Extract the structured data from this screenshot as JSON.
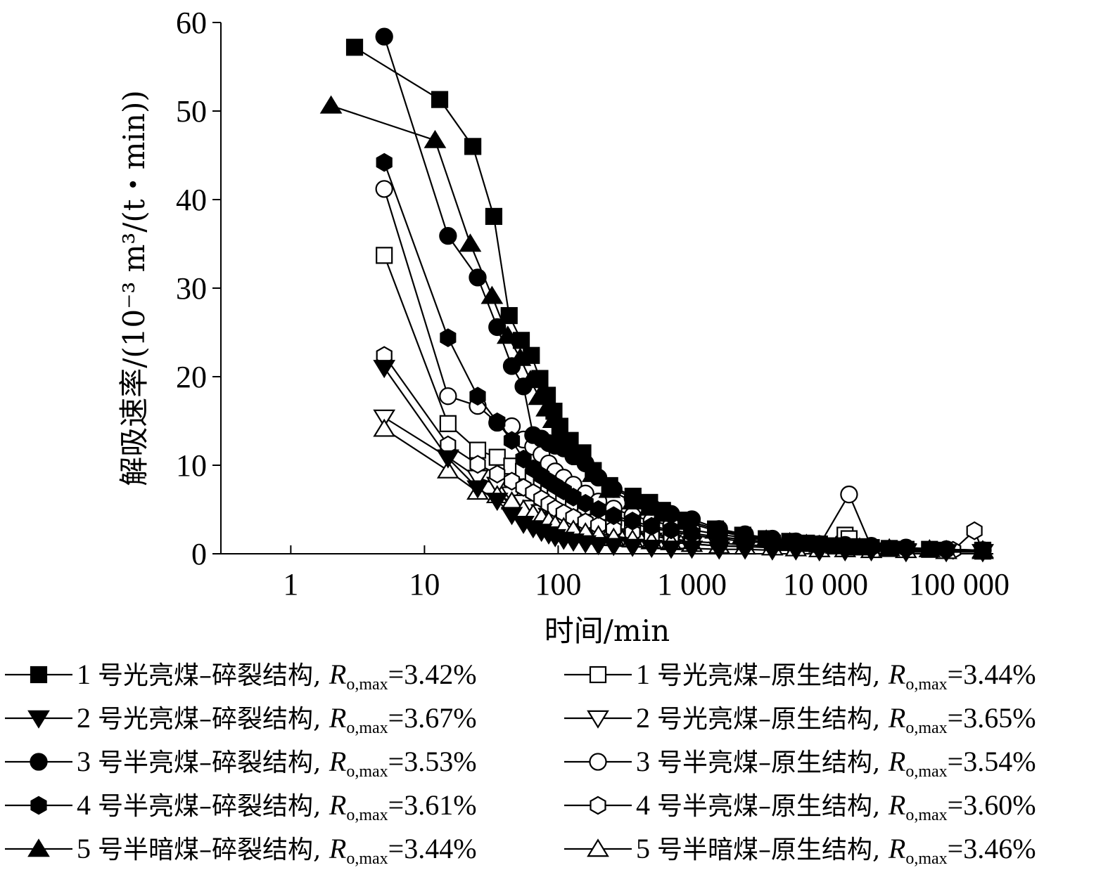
{
  "chart_data": {
    "type": "scatter",
    "xscale": "log",
    "xlim": [
      0.3,
      180000
    ],
    "ylim": [
      0,
      60
    ],
    "xlabel": "时间/min",
    "ylabel": "解吸速率/(10⁻³ m³/(t・min))",
    "x_ticks": [
      1,
      10,
      100,
      1000,
      10000,
      100000
    ],
    "x_tick_labels": [
      "1",
      "10",
      "100",
      "1 000",
      "10 000",
      "100 000"
    ],
    "y_ticks": [
      0,
      10,
      20,
      30,
      40,
      50,
      60
    ],
    "y_tick_labels": [
      "0",
      "10",
      "20",
      "30",
      "40",
      "50",
      "60"
    ],
    "grid": false,
    "legend_position": "bottom",
    "series": [
      {
        "name": "1 号光亮煤–碎裂结构, Ro,max=3.42%",
        "index": "1",
        "coal": "号光亮煤–碎裂结构",
        "ro": "3.42%",
        "marker": "square",
        "filled": true,
        "x": [
          3,
          13,
          23,
          33,
          43,
          53,
          63,
          73,
          83,
          93,
          103,
          123,
          153,
          183,
          243,
          363,
          483,
          603,
          903,
          1503,
          2403,
          3603,
          5403,
          7203,
          9003,
          12003,
          18003,
          30003,
          60003,
          150003
        ],
        "y": [
          57.2,
          51.3,
          46.0,
          38.1,
          26.9,
          24.1,
          22.4,
          19.8,
          17.9,
          16.1,
          14.4,
          12.8,
          11.4,
          9.4,
          7.7,
          6.5,
          5.8,
          4.9,
          3.8,
          2.8,
          2.1,
          1.7,
          1.4,
          1.2,
          1.1,
          0.9,
          0.8,
          0.6,
          0.5,
          0.4
        ]
      },
      {
        "name": "2 号光亮煤–碎裂结构, Ro,max=3.67%",
        "index": "2",
        "coal": "号光亮煤–碎裂结构",
        "ro": "3.67%",
        "marker": "triangle-down",
        "filled": true,
        "x": [
          5,
          15,
          25,
          35,
          45,
          55,
          65,
          75,
          85,
          95,
          110,
          130,
          160,
          200,
          260,
          360,
          500,
          700,
          1000,
          1600,
          2500,
          4000,
          6000,
          9000,
          14000,
          22000,
          40000,
          80000,
          150000
        ],
        "y": [
          21.0,
          10.8,
          7.4,
          6.0,
          4.4,
          3.4,
          2.9,
          2.5,
          2.2,
          1.9,
          1.6,
          1.4,
          1.2,
          1.0,
          0.9,
          0.8,
          0.7,
          0.6,
          0.6,
          0.5,
          0.5,
          0.4,
          0.4,
          0.3,
          0.3,
          0.3,
          0.2,
          0.2,
          0.2
        ]
      },
      {
        "name": "3 号半亮煤–碎裂结构, Ro,max=3.53%",
        "index": "3",
        "coal": "号半亮煤–碎裂结构",
        "ro": "3.53%",
        "marker": "circle",
        "filled": true,
        "x": [
          5,
          15,
          25,
          35,
          45,
          55,
          65,
          75,
          85,
          95,
          110,
          130,
          160,
          200,
          260,
          360,
          500,
          700,
          1000,
          1600,
          2500,
          4000,
          6000,
          9000,
          14000,
          22000,
          40000,
          80000,
          150000
        ],
        "y": [
          58.4,
          35.9,
          31.2,
          25.6,
          21.2,
          18.9,
          13.4,
          13.0,
          12.5,
          12.2,
          11.9,
          11.0,
          10.2,
          8.6,
          7.3,
          6.3,
          5.3,
          4.5,
          3.9,
          2.8,
          2.2,
          1.7,
          1.4,
          1.1,
          1.0,
          0.9,
          0.7,
          0.5,
          0.4
        ]
      },
      {
        "name": "4 号半亮煤–碎裂结构, Ro,max=3.61%",
        "index": "4",
        "coal": "号半亮煤–碎裂结构",
        "ro": "3.61%",
        "marker": "hexagon",
        "filled": true,
        "x": [
          5,
          15,
          25,
          35,
          45,
          55,
          65,
          75,
          85,
          95,
          110,
          130,
          160,
          200,
          260,
          360,
          500,
          700,
          1000,
          1600,
          2500,
          4000,
          6000,
          9000,
          14000,
          22000,
          40000,
          80000,
          150000
        ],
        "y": [
          44.2,
          24.4,
          17.8,
          14.9,
          12.8,
          10.7,
          9.6,
          8.8,
          8.2,
          7.7,
          7.1,
          6.4,
          5.7,
          5.0,
          4.3,
          3.7,
          3.1,
          2.7,
          2.3,
          1.9,
          1.6,
          1.3,
          1.1,
          0.9,
          0.8,
          0.7,
          0.6,
          0.5,
          0.4
        ]
      },
      {
        "name": "5 号半暗煤–碎裂结构, Ro,max=3.44%",
        "index": "5",
        "coal": "号半暗煤–碎裂结构",
        "ro": "3.44%",
        "marker": "triangle-up",
        "filled": true,
        "x": [
          2,
          12,
          22,
          32,
          42,
          52,
          62,
          72,
          82,
          92,
          102,
          122,
          152,
          182,
          242,
          362,
          482,
          602,
          902,
          1502,
          2402,
          3602,
          5402,
          7202,
          9002,
          12002,
          18002,
          30002,
          60002,
          150002
        ],
        "y": [
          50.6,
          46.7,
          35.0,
          29.1,
          24.6,
          22.1,
          19.6,
          17.7,
          16.4,
          15.1,
          13.6,
          12.4,
          10.9,
          9.0,
          7.2,
          5.9,
          5.2,
          4.5,
          3.6,
          2.6,
          2.0,
          1.6,
          1.3,
          1.1,
          1.0,
          0.9,
          0.7,
          0.6,
          0.5,
          0.4
        ]
      },
      {
        "name": "1 号光亮煤–原生结构, Ro,max=3.44%",
        "index": "1",
        "coal": "号光亮煤–原生结构",
        "ro": "3.44%",
        "marker": "square",
        "filled": false,
        "x": [
          5,
          15,
          25,
          35,
          45,
          55,
          65,
          75,
          85,
          95,
          110,
          130,
          160,
          200,
          260,
          360,
          500,
          700,
          1000,
          1600,
          2500,
          4000,
          6000,
          9000,
          14000,
          15000,
          22000,
          40000,
          80000,
          150000
        ],
        "y": [
          33.7,
          14.7,
          11.7,
          10.9,
          9.9,
          9.3,
          8.6,
          7.9,
          7.3,
          6.8,
          6.3,
          5.8,
          5.3,
          4.7,
          4.1,
          3.4,
          2.9,
          2.5,
          2.1,
          1.7,
          1.4,
          1.2,
          1.0,
          0.9,
          2.1,
          1.7,
          0.7,
          0.5,
          0.4,
          0.3
        ]
      },
      {
        "name": "2 号光亮煤–原生结构, Ro,max=3.65%",
        "index": "2",
        "coal": "号光亮煤–原生结构",
        "ro": "3.65%",
        "marker": "triangle-down",
        "filled": false,
        "x": [
          5,
          15,
          25,
          35,
          45,
          55,
          65,
          75,
          85,
          95,
          110,
          130,
          160,
          200,
          260,
          360,
          500,
          700,
          1000,
          1600,
          2500,
          4000,
          6000,
          9000,
          14000,
          22000,
          40000,
          80000,
          150000
        ],
        "y": [
          15.4,
          10.9,
          8.6,
          7.8,
          6.7,
          5.8,
          5.2,
          4.7,
          4.3,
          3.9,
          3.5,
          3.1,
          2.7,
          2.3,
          2.0,
          1.7,
          1.5,
          1.3,
          1.1,
          0.9,
          0.8,
          0.7,
          0.6,
          0.5,
          0.5,
          0.4,
          0.3,
          0.3,
          0.2
        ]
      },
      {
        "name": "3 号半亮煤–原生结构, Ro,max=3.54%",
        "index": "3",
        "coal": "号半亮煤–原生结构",
        "ro": "3.54%",
        "marker": "circle",
        "filled": false,
        "x": [
          5,
          15,
          25,
          35,
          45,
          55,
          65,
          75,
          85,
          95,
          110,
          130,
          160,
          200,
          260,
          360,
          500,
          700,
          1000,
          1600,
          2500,
          4000,
          6000,
          9000,
          15000,
          22000,
          40000,
          80000,
          150000
        ],
        "y": [
          41.2,
          17.8,
          16.7,
          14.8,
          14.4,
          12.9,
          12.1,
          11.2,
          10.2,
          9.3,
          8.6,
          7.8,
          6.8,
          5.9,
          5.1,
          4.3,
          3.7,
          3.2,
          2.7,
          2.2,
          1.8,
          1.5,
          1.2,
          1.0,
          6.7,
          0.8,
          0.6,
          0.5,
          0.4
        ]
      },
      {
        "name": "4 号半亮煤–原生结构, Ro,max=3.60%",
        "index": "4",
        "coal": "号半亮煤–原生结构",
        "ro": "3.60%",
        "marker": "hexagon",
        "filled": false,
        "x": [
          5,
          15,
          25,
          35,
          45,
          55,
          65,
          75,
          85,
          95,
          110,
          130,
          160,
          200,
          260,
          360,
          500,
          700,
          1000,
          1600,
          2500,
          4000,
          6000,
          9000,
          14000,
          22000,
          40000,
          90000,
          130000,
          150000
        ],
        "y": [
          22.4,
          12.3,
          10.1,
          9.0,
          8.2,
          7.5,
          6.9,
          6.2,
          5.6,
          5.1,
          4.6,
          4.1,
          3.6,
          3.2,
          2.8,
          2.4,
          2.0,
          1.7,
          1.4,
          1.2,
          1.0,
          0.9,
          0.8,
          0.7,
          0.6,
          0.5,
          0.4,
          0.4,
          2.6,
          0.3
        ]
      },
      {
        "name": "5 号半暗煤–原生结构, Ro,max=3.46%",
        "index": "5",
        "coal": "号半暗煤–原生结构",
        "ro": "3.46%",
        "marker": "triangle-up",
        "filled": false,
        "x": [
          5,
          15,
          25,
          35,
          45,
          55,
          65,
          75,
          85,
          95,
          110,
          130,
          160,
          200,
          260,
          360,
          500,
          700,
          1000,
          1600,
          2500,
          4000,
          6000,
          9000,
          14000,
          22000,
          40000,
          80000,
          150000
        ],
        "y": [
          14.1,
          9.4,
          7.0,
          6.6,
          5.9,
          5.0,
          4.5,
          4.1,
          3.7,
          3.3,
          3.0,
          2.7,
          2.4,
          2.1,
          1.8,
          1.6,
          1.4,
          1.3,
          1.1,
          0.9,
          0.8,
          0.7,
          0.6,
          0.5,
          0.5,
          0.4,
          0.4,
          0.3,
          0.3
        ]
      }
    ]
  },
  "legend": {
    "ro_symbol": "R",
    "ro_sub": "o,max"
  }
}
